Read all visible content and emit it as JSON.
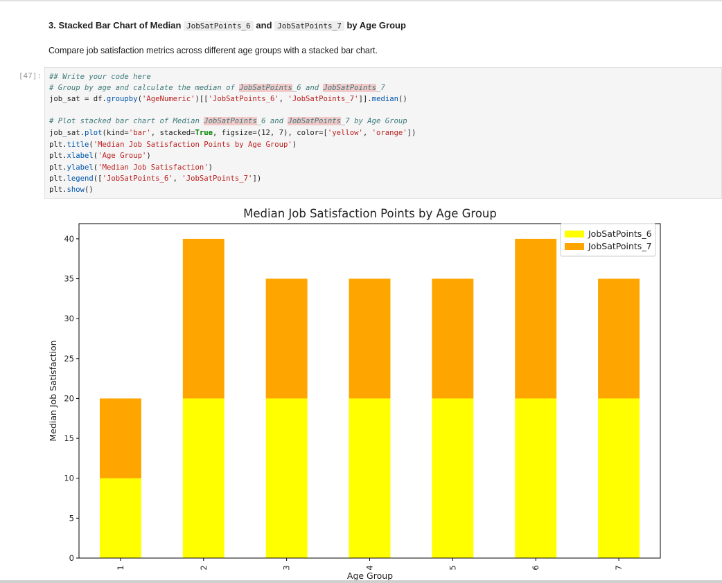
{
  "markdown": {
    "heading_prefix": "3. Stacked Bar Chart of Median ",
    "heading_code_1": "JobSatPoints_6",
    "heading_and": " and ",
    "heading_code_2": "JobSatPoints_7",
    "heading_suffix": " by Age Group",
    "paragraph": "Compare job satisfaction metrics across different age groups with a stacked bar chart."
  },
  "cell": {
    "prompt": "[47]:",
    "code": {
      "l1": "## Write your code here",
      "l2_pre": "# Group by age and calculate the median of ",
      "l2_h1": "JobSatPoints",
      "l2_mid": "_6 and ",
      "l2_h2": "JobSatPoints",
      "l2_post": "_7",
      "l3_pre": "job_sat = df.",
      "l3_fn": "groupby",
      "l3_a": "(",
      "l3_s1": "'AgeNumeric'",
      "l3_b": ")[[",
      "l3_s2": "'JobSatPoints_6'",
      "l3_c": ", ",
      "l3_s3": "'JobSatPoints_7'",
      "l3_d": "]].",
      "l3_fn2": "median",
      "l3_e": "()",
      "l5_pre": "# Plot stacked bar chart of Median ",
      "l5_h1": "JobSatPoints",
      "l5_mid": "_6 and ",
      "l5_h2": "JobSatPoints",
      "l5_post": "_7 by Age Group",
      "l6_pre": "job_sat.",
      "l6_fn": "plot",
      "l6_a": "(kind=",
      "l6_s1": "'bar'",
      "l6_b": ", stacked=",
      "l6_kw": "True",
      "l6_c": ", figsize=(12, 7), color=[",
      "l6_s2": "'yellow'",
      "l6_d": ", ",
      "l6_s3": "'orange'",
      "l6_e": "])",
      "l7_pre": "plt.",
      "l7_fn": "title",
      "l7_a": "(",
      "l7_s": "'Median Job Satisfaction Points by Age Group'",
      "l7_b": ")",
      "l8_pre": "plt.",
      "l8_fn": "xlabel",
      "l8_a": "(",
      "l8_s": "'Age Group'",
      "l8_b": ")",
      "l9_pre": "plt.",
      "l9_fn": "ylabel",
      "l9_a": "(",
      "l9_s": "'Median Job Satisfaction'",
      "l9_b": ")",
      "l10_pre": "plt.",
      "l10_fn": "legend",
      "l10_a": "([",
      "l10_s1": "'JobSatPoints_6'",
      "l10_b": ", ",
      "l10_s2": "'JobSatPoints_7'",
      "l10_c": "])",
      "l11_pre": "plt.",
      "l11_fn": "show",
      "l11_a": "()"
    }
  },
  "colors": {
    "JobSatPoints_6": "#ffff00",
    "JobSatPoints_7": "#ffa500"
  },
  "chart_data": {
    "type": "bar",
    "stacked": true,
    "title": "Median Job Satisfaction Points by Age Group",
    "xlabel": "Age Group",
    "ylabel": "Median Job Satisfaction",
    "categories": [
      "1",
      "2",
      "3",
      "4",
      "5",
      "6",
      "7"
    ],
    "series": [
      {
        "name": "JobSatPoints_6",
        "values": [
          10,
          20,
          20,
          20,
          20,
          20,
          20
        ]
      },
      {
        "name": "JobSatPoints_7",
        "values": [
          10,
          20,
          15,
          15,
          15,
          20,
          15
        ]
      }
    ],
    "ylim": [
      0,
      41.9
    ],
    "yticks": [
      0,
      5,
      10,
      15,
      20,
      25,
      30,
      35,
      40
    ],
    "grid": false,
    "legend": "top-right"
  }
}
